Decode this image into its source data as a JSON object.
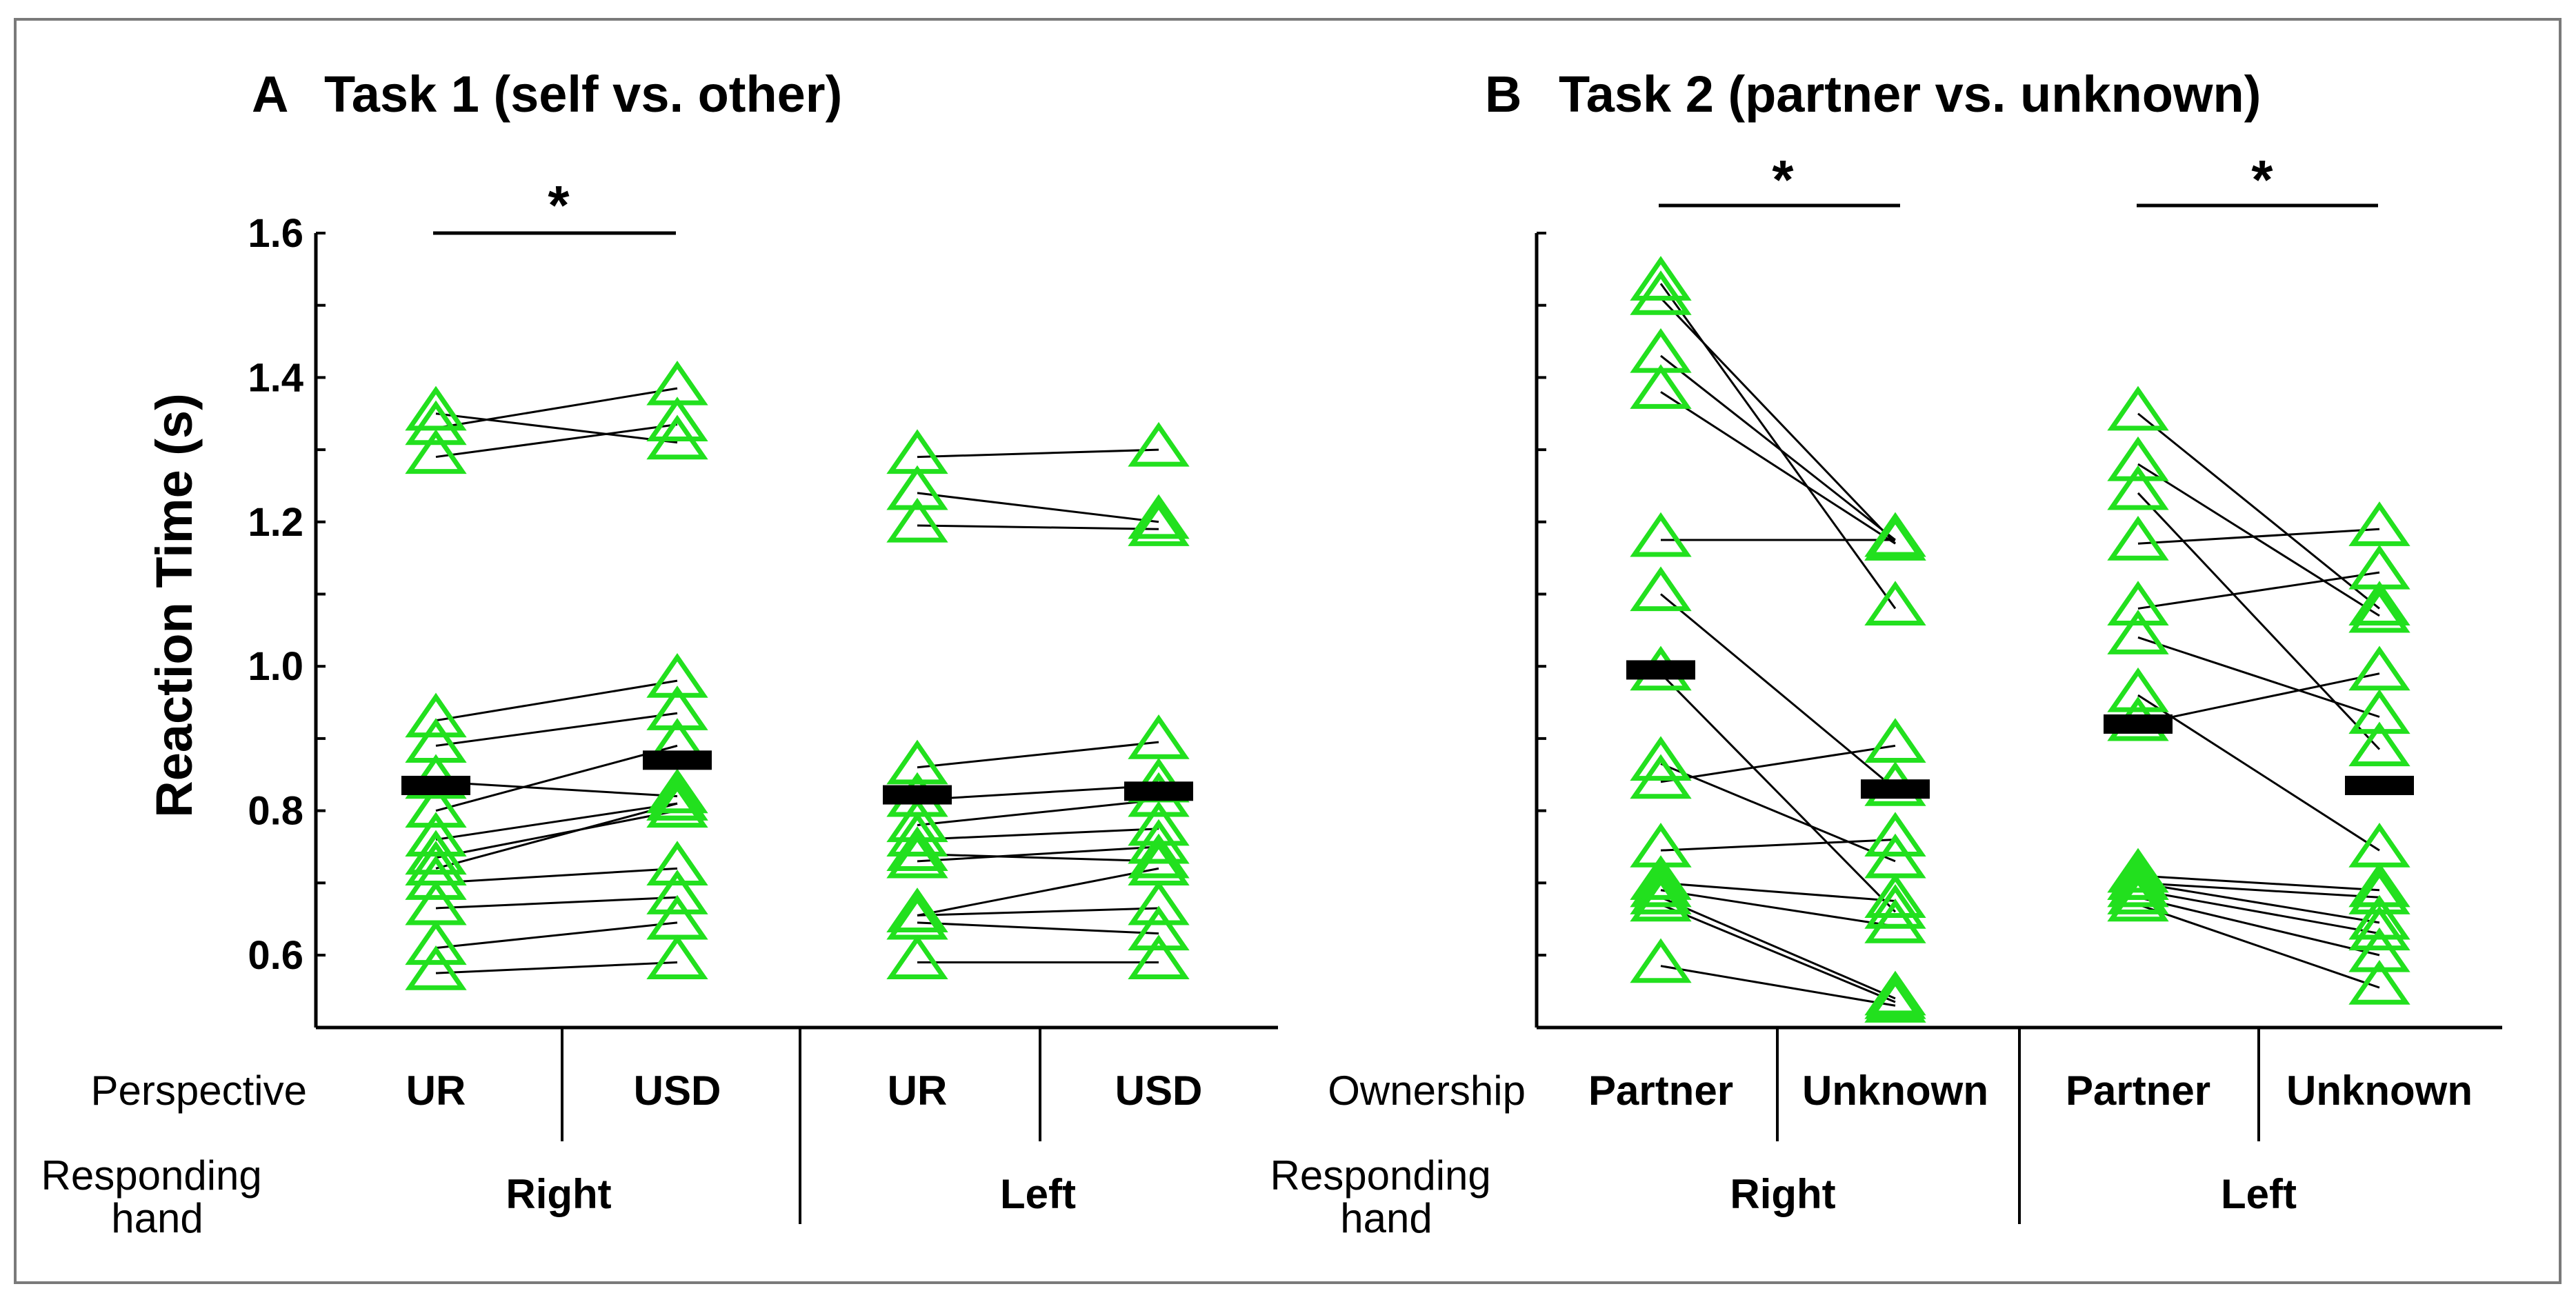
{
  "chart_data": [
    {
      "type": "scatter",
      "panel_label": "A",
      "title": "Task 1 (self vs. other)",
      "ylabel": "Reaction Time (s)",
      "ylim": [
        0.5,
        1.6
      ],
      "yticks": [
        "0.6",
        "0.8",
        "1.0",
        "1.2",
        "1.4",
        "1.6"
      ],
      "row_labels": {
        "level1": "Perspective",
        "level2": "Responding hand"
      },
      "categories": [
        "UR",
        "USD",
        "UR",
        "USD"
      ],
      "groups": [
        "Right",
        "Left"
      ],
      "significance": [
        {
          "from": 0,
          "to": 1,
          "label": "*"
        }
      ],
      "marker_color": "#22e01e",
      "mean_color": "#000000",
      "means": [
        0.835,
        0.87,
        0.822,
        0.827
      ],
      "paired": [
        {
          "x_indices": [
            0,
            1
          ],
          "values": [
            [
              1.35,
              1.31
            ],
            [
              1.33,
              1.385
            ],
            [
              1.29,
              1.335
            ],
            [
              0.925,
              0.98
            ],
            [
              0.89,
              0.935
            ],
            [
              0.84,
              0.82
            ],
            [
              0.8,
              0.89
            ],
            [
              0.76,
              0.81
            ],
            [
              0.735,
              0.8
            ],
            [
              0.72,
              0.81
            ],
            [
              0.7,
              0.72
            ],
            [
              0.665,
              0.68
            ],
            [
              0.61,
              0.645
            ],
            [
              0.575,
              0.59
            ]
          ]
        },
        {
          "x_indices": [
            2,
            3
          ],
          "values": [
            [
              1.29,
              1.3
            ],
            [
              1.24,
              1.2
            ],
            [
              1.195,
              1.19
            ],
            [
              0.86,
              0.895
            ],
            [
              0.815,
              0.835
            ],
            [
              0.78,
              0.815
            ],
            [
              0.76,
              0.775
            ],
            [
              0.74,
              0.73
            ],
            [
              0.73,
              0.75
            ],
            [
              0.655,
              0.72
            ],
            [
              0.655,
              0.665
            ],
            [
              0.645,
              0.63
            ],
            [
              0.59,
              0.59
            ]
          ]
        }
      ]
    },
    {
      "type": "scatter",
      "panel_label": "B",
      "title": "Task 2 (partner vs. unknown)",
      "ylabel": "",
      "ylim": [
        0.5,
        1.6
      ],
      "yticks": [],
      "row_labels": {
        "level1": "Ownership",
        "level2": "Responding hand"
      },
      "categories": [
        "Partner",
        "Unknown",
        "Partner",
        "Unknown"
      ],
      "groups": [
        "Right",
        "Left"
      ],
      "significance": [
        {
          "from": 0,
          "to": 1,
          "label": "*"
        },
        {
          "from": 2,
          "to": 3,
          "label": "*"
        }
      ],
      "marker_color": "#22e01e",
      "mean_color": "#000000",
      "means": [
        0.995,
        0.83,
        0.92,
        0.835
      ],
      "paired": [
        {
          "x_indices": [
            0,
            1
          ],
          "values": [
            [
              1.53,
              1.08
            ],
            [
              1.51,
              1.17
            ],
            [
              1.43,
              1.175
            ],
            [
              1.38,
              1.17
            ],
            [
              1.175,
              1.175
            ],
            [
              1.1,
              0.83
            ],
            [
              0.99,
              0.66
            ],
            [
              0.865,
              0.73
            ],
            [
              0.84,
              0.89
            ],
            [
              0.745,
              0.76
            ],
            [
              0.7,
              0.675
            ],
            [
              0.69,
              0.64
            ],
            [
              0.68,
              0.54
            ],
            [
              0.67,
              0.535
            ],
            [
              0.585,
              0.53
            ]
          ]
        },
        {
          "x_indices": [
            2,
            3
          ],
          "values": [
            [
              1.35,
              1.08
            ],
            [
              1.28,
              1.07
            ],
            [
              1.24,
              0.885
            ],
            [
              1.17,
              1.19
            ],
            [
              1.08,
              1.13
            ],
            [
              1.04,
              0.93
            ],
            [
              0.96,
              0.745
            ],
            [
              0.92,
              0.99
            ],
            [
              0.71,
              0.69
            ],
            [
              0.7,
              0.68
            ],
            [
              0.7,
              0.645
            ],
            [
              0.69,
              0.63
            ],
            [
              0.68,
              0.6
            ],
            [
              0.67,
              0.555
            ]
          ]
        }
      ]
    }
  ]
}
